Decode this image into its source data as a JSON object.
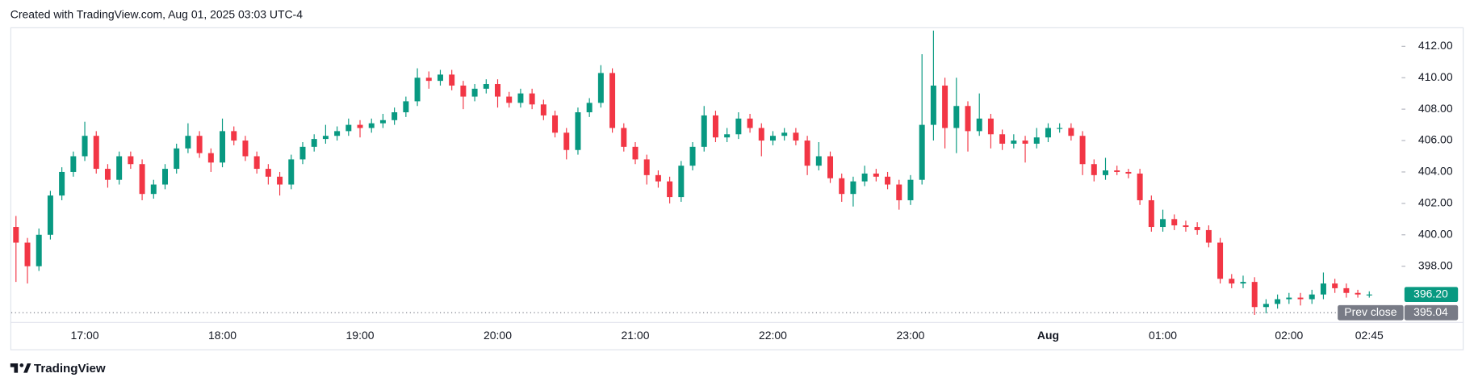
{
  "header": "Created with TradingView.com, Aug 01, 2025 03:03 UTC-4",
  "footer": "TradingView",
  "chart_data": {
    "type": "candlestick",
    "up_color": "#089981",
    "down_color": "#f23645",
    "ylim": [
      394.45,
      413.15
    ],
    "yticks": [
      {
        "value": 398,
        "label": "398.00"
      },
      {
        "value": 400,
        "label": "400.00"
      },
      {
        "value": 402,
        "label": "402.00"
      },
      {
        "value": 404,
        "label": "404.00"
      },
      {
        "value": 406,
        "label": "406.00"
      },
      {
        "value": 408,
        "label": "408.00"
      },
      {
        "value": 410,
        "label": "410.00"
      },
      {
        "value": 412,
        "label": "412.00"
      }
    ],
    "last_price": {
      "value": 396.2,
      "label": "396.20"
    },
    "prev_close": {
      "name": "Prev close",
      "value": 395.04,
      "label": "395.04"
    },
    "categories": [
      null,
      null,
      null,
      null,
      null,
      null,
      "17:00",
      null,
      null,
      null,
      null,
      null,
      null,
      null,
      null,
      null,
      null,
      null,
      "18:00",
      null,
      null,
      null,
      null,
      null,
      null,
      null,
      null,
      null,
      null,
      null,
      "19:00",
      null,
      null,
      null,
      null,
      null,
      null,
      null,
      null,
      null,
      null,
      null,
      "20:00",
      null,
      null,
      null,
      null,
      null,
      null,
      null,
      null,
      null,
      null,
      null,
      "21:00",
      null,
      null,
      null,
      null,
      null,
      null,
      null,
      null,
      null,
      null,
      null,
      "22:00",
      null,
      null,
      null,
      null,
      null,
      null,
      null,
      null,
      null,
      null,
      null,
      "23:00",
      null,
      null,
      null,
      null,
      null,
      null,
      null,
      null,
      null,
      null,
      null,
      "Aug",
      null,
      null,
      null,
      null,
      null,
      null,
      null,
      null,
      null,
      "01:00",
      null,
      null,
      null,
      null,
      null,
      null,
      null,
      null,
      null,
      null,
      "02:00",
      null,
      null,
      null,
      null,
      null,
      null,
      "02:45"
    ],
    "ohlc": [
      [
        400.5,
        401.2,
        397.0,
        399.5
      ],
      [
        399.5,
        399.8,
        396.9,
        398.0
      ],
      [
        398.0,
        400.4,
        397.7,
        400.0
      ],
      [
        400.0,
        402.8,
        399.7,
        402.5
      ],
      [
        402.5,
        404.3,
        402.2,
        404.0
      ],
      [
        404.0,
        405.3,
        403.7,
        405.0
      ],
      [
        405.0,
        407.2,
        404.7,
        406.3
      ],
      [
        406.3,
        406.6,
        403.9,
        404.2
      ],
      [
        404.2,
        404.5,
        403.0,
        403.5
      ],
      [
        403.5,
        405.3,
        403.2,
        405.0
      ],
      [
        405.0,
        405.3,
        404.2,
        404.5
      ],
      [
        404.5,
        404.8,
        402.2,
        402.6
      ],
      [
        402.6,
        403.5,
        402.3,
        403.2
      ],
      [
        403.2,
        404.5,
        402.9,
        404.2
      ],
      [
        404.2,
        405.8,
        403.9,
        405.5
      ],
      [
        405.5,
        407.1,
        405.2,
        406.3
      ],
      [
        406.3,
        406.6,
        404.9,
        405.2
      ],
      [
        405.2,
        405.5,
        404.0,
        404.6
      ],
      [
        404.6,
        407.4,
        404.3,
        406.6
      ],
      [
        406.6,
        406.9,
        405.7,
        406.0
      ],
      [
        406.0,
        406.3,
        404.7,
        405.0
      ],
      [
        405.0,
        405.3,
        403.9,
        404.2
      ],
      [
        404.2,
        404.5,
        403.2,
        403.7
      ],
      [
        403.7,
        404.0,
        402.5,
        403.2
      ],
      [
        403.2,
        405.1,
        402.9,
        404.8
      ],
      [
        404.8,
        405.9,
        404.5,
        405.6
      ],
      [
        405.6,
        406.4,
        405.3,
        406.1
      ],
      [
        406.1,
        407.0,
        405.8,
        406.3
      ],
      [
        406.3,
        406.9,
        406.0,
        406.6
      ],
      [
        406.6,
        407.4,
        406.3,
        407.0
      ],
      [
        407.0,
        407.3,
        406.2,
        406.8
      ],
      [
        406.8,
        407.4,
        406.5,
        407.1
      ],
      [
        407.1,
        407.7,
        406.8,
        407.3
      ],
      [
        407.3,
        408.1,
        407.0,
        407.8
      ],
      [
        407.8,
        408.8,
        407.5,
        408.5
      ],
      [
        408.5,
        410.6,
        408.2,
        410.0
      ],
      [
        410.0,
        410.4,
        409.3,
        409.8
      ],
      [
        409.8,
        410.5,
        409.5,
        410.2
      ],
      [
        410.2,
        410.5,
        409.2,
        409.5
      ],
      [
        409.5,
        409.8,
        408.0,
        408.8
      ],
      [
        408.8,
        409.6,
        408.5,
        409.3
      ],
      [
        409.3,
        409.9,
        409.0,
        409.6
      ],
      [
        409.6,
        409.9,
        408.1,
        408.8
      ],
      [
        408.8,
        409.1,
        408.1,
        408.4
      ],
      [
        408.4,
        409.3,
        408.1,
        409.0
      ],
      [
        409.0,
        409.3,
        408.0,
        408.3
      ],
      [
        408.3,
        408.6,
        407.3,
        407.6
      ],
      [
        407.6,
        407.9,
        406.2,
        406.5
      ],
      [
        406.5,
        406.8,
        404.8,
        405.4
      ],
      [
        405.4,
        408.1,
        405.1,
        407.8
      ],
      [
        407.8,
        408.7,
        407.5,
        408.4
      ],
      [
        408.4,
        410.8,
        408.1,
        410.3
      ],
      [
        410.3,
        410.6,
        406.5,
        406.8
      ],
      [
        406.8,
        407.1,
        405.3,
        405.6
      ],
      [
        405.6,
        405.9,
        404.5,
        404.8
      ],
      [
        404.8,
        405.1,
        403.2,
        403.8
      ],
      [
        403.8,
        404.1,
        403.0,
        403.4
      ],
      [
        403.4,
        403.7,
        402.0,
        402.4
      ],
      [
        402.4,
        404.7,
        402.1,
        404.4
      ],
      [
        404.4,
        405.9,
        404.1,
        405.6
      ],
      [
        405.6,
        408.2,
        405.3,
        407.6
      ],
      [
        407.6,
        407.9,
        405.9,
        406.2
      ],
      [
        406.2,
        406.8,
        405.9,
        406.4
      ],
      [
        406.4,
        407.8,
        406.1,
        407.4
      ],
      [
        407.4,
        407.7,
        406.5,
        406.8
      ],
      [
        406.8,
        407.1,
        405.0,
        406.0
      ],
      [
        406.0,
        406.6,
        405.7,
        406.3
      ],
      [
        406.3,
        406.8,
        406.0,
        406.5
      ],
      [
        406.5,
        406.8,
        405.7,
        406.0
      ],
      [
        406.0,
        406.3,
        403.8,
        404.4
      ],
      [
        404.4,
        405.9,
        404.1,
        405.0
      ],
      [
        405.0,
        405.3,
        403.3,
        403.6
      ],
      [
        403.6,
        403.9,
        402.1,
        402.6
      ],
      [
        402.6,
        403.7,
        401.8,
        403.4
      ],
      [
        403.4,
        404.4,
        403.1,
        403.9
      ],
      [
        403.9,
        404.2,
        403.4,
        403.7
      ],
      [
        403.7,
        404.0,
        402.9,
        403.2
      ],
      [
        403.2,
        403.5,
        401.6,
        402.2
      ],
      [
        402.2,
        403.8,
        401.9,
        403.5
      ],
      [
        403.5,
        411.5,
        403.2,
        407.0
      ],
      [
        407.0,
        413.0,
        406.0,
        409.5
      ],
      [
        409.5,
        410.0,
        405.5,
        406.8
      ],
      [
        406.8,
        410.0,
        405.2,
        408.2
      ],
      [
        408.2,
        408.5,
        405.3,
        406.6
      ],
      [
        406.6,
        409.0,
        406.3,
        407.4
      ],
      [
        407.4,
        407.7,
        405.5,
        406.4
      ],
      [
        406.4,
        406.7,
        405.4,
        405.8
      ],
      [
        405.8,
        406.4,
        405.5,
        406.0
      ],
      [
        406.0,
        406.3,
        404.6,
        405.8
      ],
      [
        405.8,
        406.8,
        405.5,
        406.2
      ],
      [
        406.2,
        407.1,
        405.9,
        406.8
      ],
      [
        406.8,
        407.1,
        406.5,
        406.8
      ],
      [
        406.8,
        407.1,
        406.0,
        406.3
      ],
      [
        406.3,
        406.6,
        403.8,
        404.5
      ],
      [
        404.5,
        404.8,
        403.4,
        403.8
      ],
      [
        403.8,
        404.9,
        403.5,
        404.1
      ],
      [
        404.1,
        404.4,
        403.8,
        404.0
      ],
      [
        404.0,
        404.2,
        403.6,
        403.9
      ],
      [
        403.9,
        404.2,
        401.9,
        402.2
      ],
      [
        402.2,
        402.5,
        400.2,
        400.5
      ],
      [
        400.5,
        401.6,
        400.2,
        401.0
      ],
      [
        401.0,
        401.3,
        400.3,
        400.6
      ],
      [
        400.6,
        400.9,
        400.2,
        400.5
      ],
      [
        400.5,
        400.8,
        400.0,
        400.3
      ],
      [
        400.3,
        400.6,
        399.2,
        399.5
      ],
      [
        399.5,
        399.8,
        396.9,
        397.2
      ],
      [
        397.2,
        397.5,
        396.6,
        396.9
      ],
      [
        396.9,
        397.4,
        396.6,
        397.0
      ],
      [
        397.0,
        397.3,
        394.9,
        395.4
      ],
      [
        395.4,
        395.9,
        395.0,
        395.6
      ],
      [
        395.6,
        396.2,
        395.3,
        395.9
      ],
      [
        395.9,
        396.3,
        395.6,
        396.0
      ],
      [
        396.0,
        396.3,
        395.5,
        395.9
      ],
      [
        395.9,
        396.5,
        395.6,
        396.2
      ],
      [
        396.2,
        397.6,
        395.9,
        396.9
      ],
      [
        396.9,
        397.2,
        396.3,
        396.6
      ],
      [
        396.6,
        396.9,
        396.0,
        396.3
      ],
      [
        396.3,
        396.5,
        396.0,
        396.2
      ],
      [
        396.2,
        396.4,
        396.0,
        396.2
      ]
    ]
  }
}
